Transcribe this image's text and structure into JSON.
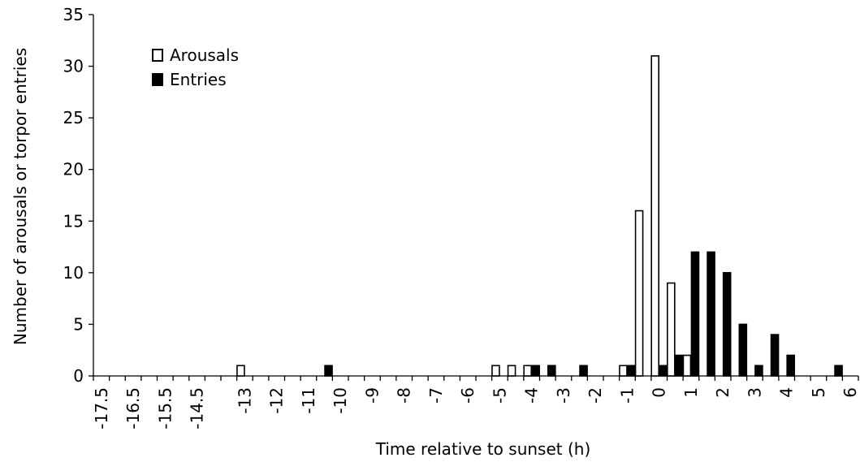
{
  "chart_data": {
    "type": "bar",
    "title": "",
    "xlabel": "Time relative to sunset (h)",
    "ylabel": "Number of arousals or torpor entries",
    "ylim": [
      0,
      35
    ],
    "yticks": [
      0,
      5,
      10,
      15,
      20,
      25,
      30,
      35
    ],
    "categories": [
      "-17.5",
      "-17",
      "-16.5",
      "-16",
      "-15.5",
      "-15",
      "-14.5",
      "-14",
      "-13.5",
      "-13",
      "-12.5",
      "-12",
      "-11.5",
      "-11",
      "-10.5",
      "-10",
      "-9.5",
      "-9",
      "-8.5",
      "-8",
      "-7.5",
      "-7",
      "-6.5",
      "-6",
      "-5.5",
      "-5",
      "-4.5",
      "-4",
      "-3.5",
      "-3",
      "-2.5",
      "-2",
      "-1.5",
      "-1",
      "-0.5",
      "0",
      "0.5",
      "1",
      "1.5",
      "2",
      "2.5",
      "3",
      "3.5",
      "4",
      "4.5",
      "5",
      "5.5",
      "6"
    ],
    "xtick_labels": [
      "-17.5",
      "-16.5",
      "-15.5",
      "-14.5",
      "-13",
      "-12",
      "-11",
      "-10",
      "-9",
      "-8",
      "-7",
      "-6",
      "-5",
      "-4",
      "-3",
      "-2",
      "-1",
      "0",
      "1",
      "2",
      "3",
      "4",
      "5",
      "6"
    ],
    "series": [
      {
        "name": "Arousals",
        "color": "#ffffff",
        "stroke": "#000000",
        "values": [
          0,
          0,
          0,
          0,
          0,
          0,
          0,
          0,
          0,
          1,
          0,
          0,
          0,
          0,
          0,
          0,
          0,
          0,
          0,
          0,
          0,
          0,
          0,
          0,
          0,
          1,
          1,
          1,
          0,
          0,
          0,
          0,
          0,
          1,
          16,
          31,
          9,
          2,
          0,
          0,
          0,
          0,
          0,
          0,
          0,
          0,
          0,
          0
        ]
      },
      {
        "name": "Entries",
        "color": "#000000",
        "stroke": "#000000",
        "values": [
          0,
          0,
          0,
          0,
          0,
          0,
          0,
          0,
          0,
          0,
          0,
          0,
          0,
          0,
          1,
          0,
          0,
          0,
          0,
          0,
          0,
          0,
          0,
          0,
          0,
          0,
          0,
          1,
          1,
          0,
          1,
          0,
          0,
          1,
          0,
          1,
          2,
          12,
          12,
          10,
          5,
          1,
          4,
          2,
          0,
          0,
          1,
          0
        ]
      }
    ],
    "legend": {
      "position": "top-left"
    },
    "grid": false
  }
}
